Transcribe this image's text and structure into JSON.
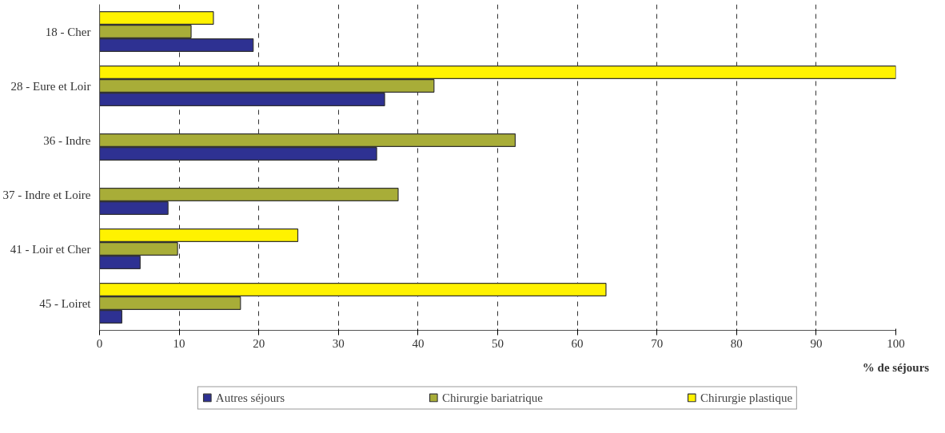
{
  "chart_data": {
    "type": "bar",
    "orientation": "horizontal",
    "xlabel": "% de séjours",
    "categories": [
      "18 - Cher",
      "28 - Eure et Loir",
      "36 - Indre",
      "37 - Indre et Loire",
      "41 - Loir et Cher",
      "45 - Loiret"
    ],
    "series": [
      {
        "name": "Autres séjours",
        "color": "#2e3192",
        "values": [
          19.3,
          35.8,
          34.8,
          8.6,
          5.1,
          2.8
        ]
      },
      {
        "name": "Chirurgie bariatrique",
        "color": "#a8ad38",
        "values": [
          11.5,
          42.0,
          52.2,
          37.5,
          9.8,
          17.7
        ]
      },
      {
        "name": "Chirurgie plastique",
        "color": "#fff200",
        "values": [
          14.3,
          100,
          null,
          null,
          24.9,
          63.6
        ]
      }
    ],
    "xlim": [
      0,
      100
    ],
    "xticks": [
      0,
      10,
      20,
      30,
      40,
      50,
      60,
      70,
      80,
      90,
      100
    ],
    "grid": "x",
    "legend": "bottom"
  }
}
